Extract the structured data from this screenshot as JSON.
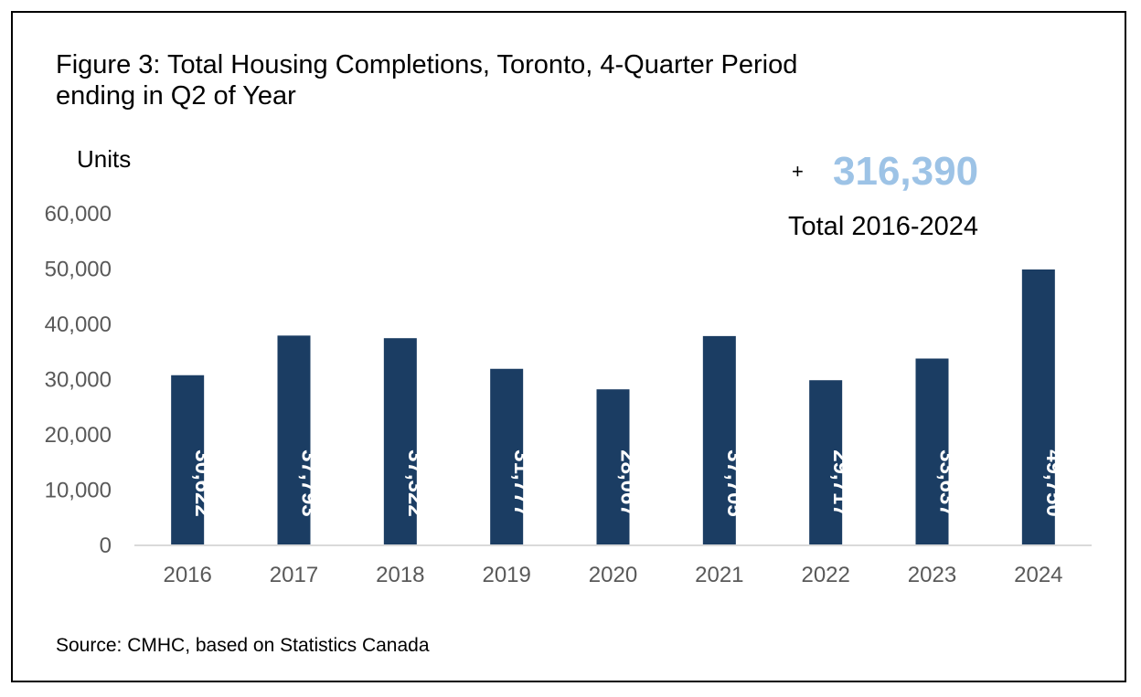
{
  "chart_data": {
    "type": "bar",
    "title": "Figure 3: Total Housing Completions, Toronto, 4-Quarter Period ending in Q2 of Year",
    "title_lines": [
      "Figure 3: Total Housing Completions, Toronto, 4-Quarter Period",
      "ending in Q2 of Year"
    ],
    "xlabel": "",
    "ylabel": "Units",
    "categories": [
      "2016",
      "2017",
      "2018",
      "2019",
      "2020",
      "2021",
      "2022",
      "2023",
      "2024"
    ],
    "values": [
      30622,
      37793,
      37322,
      31777,
      28067,
      37705,
      29717,
      33637,
      49750
    ],
    "data_labels": [
      "30,622",
      "37,793",
      "37,322",
      "31,777",
      "28,067",
      "37,705",
      "29,717",
      "33,637",
      "49,750"
    ],
    "ylim": [
      0,
      60000
    ],
    "yticks": [
      0,
      10000,
      20000,
      30000,
      40000,
      50000,
      60000
    ],
    "ytick_labels": [
      "0",
      "10,000",
      "20,000",
      "30,000",
      "40,000",
      "50,000",
      "60,000"
    ],
    "grid": false,
    "legend": "none",
    "bar_color": "#1b3d63",
    "annotations": {
      "plus": "+",
      "total_value": "316,390",
      "total_value_color": "#9dc3e6",
      "total_label": "Total 2016-2024"
    },
    "source": "Source: CMHC, based on Statistics Canada"
  }
}
